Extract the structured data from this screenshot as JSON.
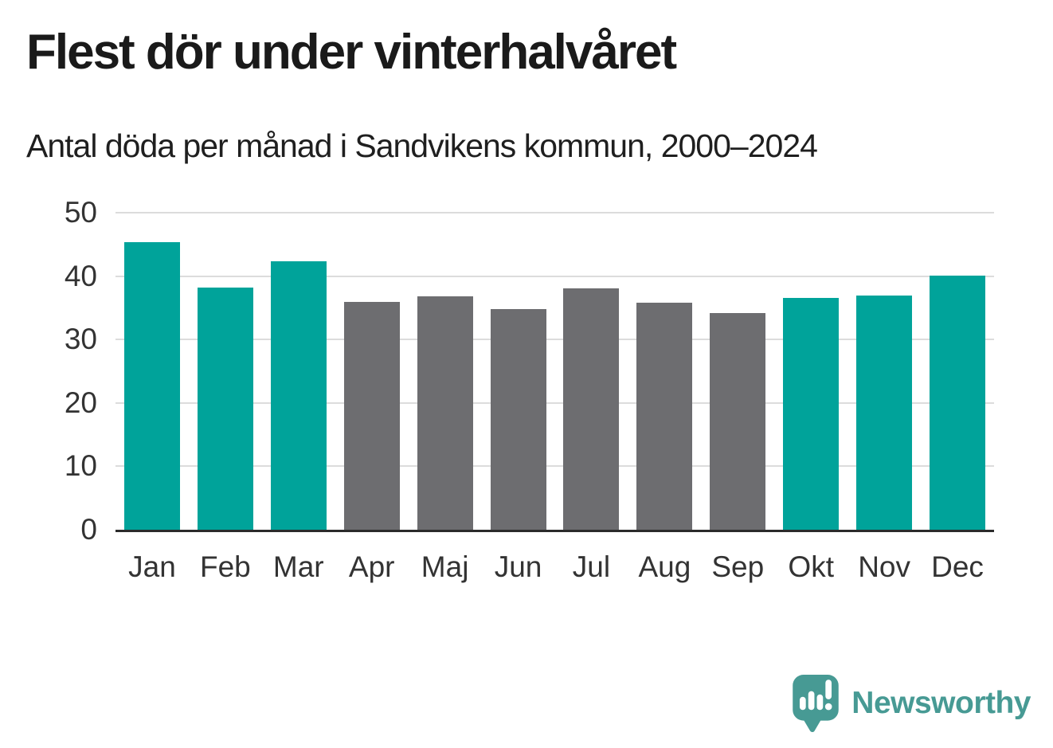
{
  "title": "Flest dör under vinterhalvåret",
  "subtitle": "Antal döda per månad i Sandvikens kommun, 2000–2024",
  "branding": {
    "name": "Newsworthy",
    "logo_icon": "speech-bubble-bar-chart-icon",
    "color": "#479a94"
  },
  "colors": {
    "highlight_teal": "#00a39a",
    "muted_gray": "#6d6d70",
    "gridline": "#dcdcdc",
    "axis": "#2b2b2b",
    "title_text": "#1a1a1a",
    "tick_text": "#333333"
  },
  "chart_data": {
    "type": "bar",
    "title": "Flest dör under vinterhalvåret",
    "subtitle": "Antal döda per månad i Sandvikens kommun, 2000–2024",
    "categories": [
      "Jan",
      "Feb",
      "Mar",
      "Apr",
      "Maj",
      "Jun",
      "Jul",
      "Aug",
      "Sep",
      "Okt",
      "Nov",
      "Dec"
    ],
    "values": [
      45.3,
      38.2,
      42.3,
      35.9,
      36.8,
      34.8,
      38.1,
      35.8,
      34.2,
      36.5,
      36.9,
      40.1
    ],
    "bar_colors": [
      "#00a39a",
      "#00a39a",
      "#00a39a",
      "#6d6d70",
      "#6d6d70",
      "#6d6d70",
      "#6d6d70",
      "#6d6d70",
      "#6d6d70",
      "#00a39a",
      "#00a39a",
      "#00a39a"
    ],
    "highlighted_categories": [
      "Jan",
      "Feb",
      "Mar",
      "Okt",
      "Nov",
      "Dec"
    ],
    "xlabel": "",
    "ylabel": "",
    "ylim": [
      0,
      50
    ],
    "yticks": [
      0,
      10,
      20,
      30,
      40,
      50
    ],
    "grid": "horizontal",
    "legend": "none"
  }
}
